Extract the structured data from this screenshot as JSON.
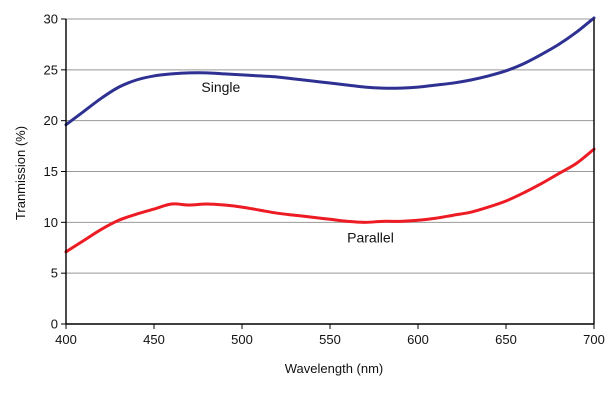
{
  "chart_data": {
    "type": "line",
    "title": "",
    "xlabel": "Wavelength (nm)",
    "ylabel": "Tranmission (%)",
    "xlim": [
      400,
      700
    ],
    "ylim": [
      0,
      30
    ],
    "xticks": [
      "400",
      "450",
      "500",
      "550",
      "600",
      "650",
      "700"
    ],
    "yticks": [
      "0",
      "5",
      "10",
      "15",
      "20",
      "25",
      "30"
    ],
    "grid": "horizontal",
    "legend": "none",
    "series": [
      {
        "name": "Single",
        "color": "#2e3192",
        "x": [
          400,
          410,
          420,
          430,
          440,
          450,
          460,
          470,
          480,
          490,
          500,
          510,
          520,
          530,
          540,
          550,
          560,
          570,
          580,
          590,
          600,
          610,
          620,
          630,
          640,
          650,
          660,
          670,
          680,
          690,
          700
        ],
        "y": [
          19.6,
          20.9,
          22.2,
          23.3,
          24.0,
          24.4,
          24.6,
          24.7,
          24.7,
          24.6,
          24.5,
          24.4,
          24.3,
          24.1,
          23.9,
          23.7,
          23.5,
          23.3,
          23.2,
          23.2,
          23.3,
          23.5,
          23.7,
          24.0,
          24.4,
          24.9,
          25.6,
          26.5,
          27.5,
          28.7,
          30.1
        ]
      },
      {
        "name": "Parallel",
        "color": "#ed1c24",
        "x": [
          400,
          410,
          420,
          430,
          440,
          450,
          460,
          470,
          480,
          490,
          500,
          510,
          520,
          530,
          540,
          550,
          560,
          570,
          580,
          590,
          600,
          610,
          620,
          630,
          640,
          650,
          660,
          670,
          680,
          690,
          700
        ],
        "y": [
          7.1,
          8.2,
          9.3,
          10.2,
          10.8,
          11.3,
          11.8,
          11.7,
          11.8,
          11.7,
          11.5,
          11.2,
          10.9,
          10.7,
          10.5,
          10.3,
          10.1,
          10.0,
          10.1,
          10.1,
          10.2,
          10.4,
          10.7,
          11.0,
          11.5,
          12.1,
          12.9,
          13.8,
          14.8,
          15.8,
          17.2
        ]
      }
    ],
    "annotations": [
      {
        "text": "Single",
        "x": 488,
        "y": 22.8
      },
      {
        "text": "Parallel",
        "x": 573,
        "y": 8.0
      }
    ]
  }
}
